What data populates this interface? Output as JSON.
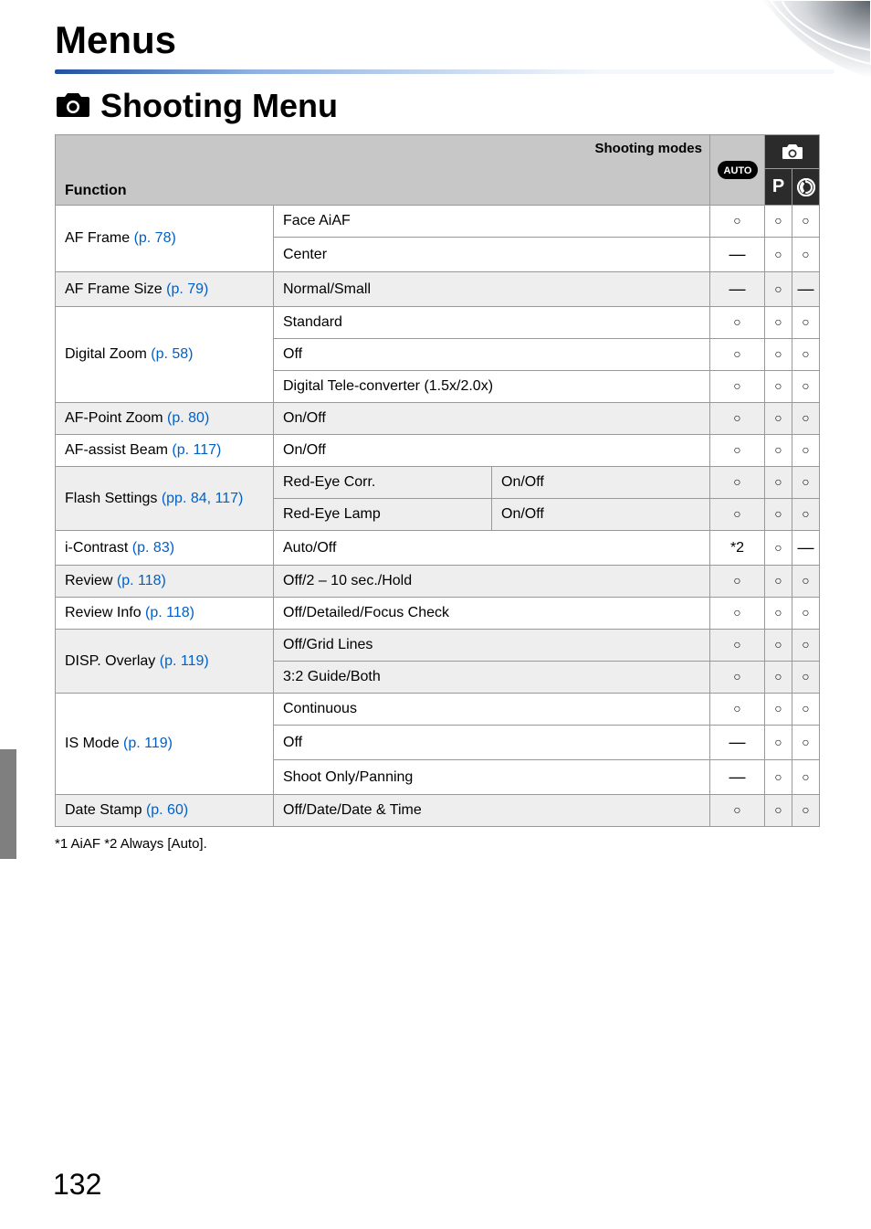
{
  "page": {
    "title": "Menus",
    "subtitle": "Shooting Menu",
    "page_number": "132",
    "footnote": "*1 AiAF *2 Always [Auto]."
  },
  "table": {
    "header": {
      "shooting_modes": "Shooting modes",
      "function": "Function",
      "auto_label": "AUTO",
      "p_label": "P"
    },
    "rows": [
      {
        "func": "AF Frame",
        "ref": "(p. 78)",
        "options": [
          {
            "label": "Face AiAF",
            "cells": [
              "○",
              "○",
              "○"
            ]
          },
          {
            "label": "Center",
            "cells": [
              "—",
              "○",
              "○"
            ]
          }
        ],
        "alt": false
      },
      {
        "func": "AF Frame Size",
        "ref": "(p. 79)",
        "options": [
          {
            "label": "Normal/Small",
            "cells": [
              "—",
              "○",
              "—"
            ]
          }
        ],
        "alt": true
      },
      {
        "func": "Digital Zoom",
        "ref": "(p. 58)",
        "options": [
          {
            "label": "Standard",
            "cells": [
              "○",
              "○",
              "○"
            ]
          },
          {
            "label": "Off",
            "cells": [
              "○",
              "○",
              "○"
            ]
          },
          {
            "label": "Digital Tele-converter (1.5x/2.0x)",
            "cells": [
              "○",
              "○",
              "○"
            ]
          }
        ],
        "alt": false
      },
      {
        "func": "AF-Point Zoom",
        "ref": "(p. 80)",
        "options": [
          {
            "label": "On/Off",
            "cells": [
              "○",
              "○",
              "○"
            ]
          }
        ],
        "alt": true
      },
      {
        "func": "AF-assist Beam",
        "ref": "(p. 117)",
        "options": [
          {
            "label": "On/Off",
            "cells": [
              "○",
              "○",
              "○"
            ]
          }
        ],
        "alt": false
      },
      {
        "func": "Flash Settings",
        "ref": "(pp. 84, 117)",
        "options": [
          {
            "label": "Red-Eye Corr.",
            "sub": "On/Off",
            "cells": [
              "○",
              "○",
              "○"
            ]
          },
          {
            "label": "Red-Eye Lamp",
            "sub": "On/Off",
            "cells": [
              "○",
              "○",
              "○"
            ]
          }
        ],
        "alt": true
      },
      {
        "func": "i-Contrast",
        "ref": "(p. 83)",
        "options": [
          {
            "label": "Auto/Off",
            "cells": [
              "*2",
              "○",
              "—"
            ]
          }
        ],
        "alt": false
      },
      {
        "func": "Review",
        "ref": "(p. 118)",
        "options": [
          {
            "label": "Off/2 – 10 sec./Hold",
            "cells": [
              "○",
              "○",
              "○"
            ]
          }
        ],
        "alt": true
      },
      {
        "func": "Review Info",
        "ref": "(p. 118)",
        "options": [
          {
            "label": "Off/Detailed/Focus Check",
            "cells": [
              "○",
              "○",
              "○"
            ]
          }
        ],
        "alt": false
      },
      {
        "func": "DISP. Overlay",
        "ref": "(p. 119)",
        "options": [
          {
            "label": "Off/Grid Lines",
            "cells": [
              "○",
              "○",
              "○"
            ]
          },
          {
            "label": "3:2 Guide/Both",
            "cells": [
              "○",
              "○",
              "○"
            ]
          }
        ],
        "alt": true
      },
      {
        "func": "IS Mode",
        "ref": "(p. 119)",
        "options": [
          {
            "label": "Continuous",
            "cells": [
              "○",
              "○",
              "○"
            ]
          },
          {
            "label": "Off",
            "cells": [
              "—",
              "○",
              "○"
            ]
          },
          {
            "label": "Shoot Only/Panning",
            "cells": [
              "—",
              "○",
              "○"
            ]
          }
        ],
        "alt": false
      },
      {
        "func": "Date Stamp",
        "ref": "(p. 60)",
        "options": [
          {
            "label": "Off/Date/Date & Time",
            "cells": [
              "○",
              "○",
              "○"
            ]
          }
        ],
        "alt": true
      }
    ]
  },
  "colors": {
    "link": "#0060c8",
    "header_bg": "#c7c7c7",
    "alt_row": "#eeeeee",
    "border": "#999999"
  }
}
